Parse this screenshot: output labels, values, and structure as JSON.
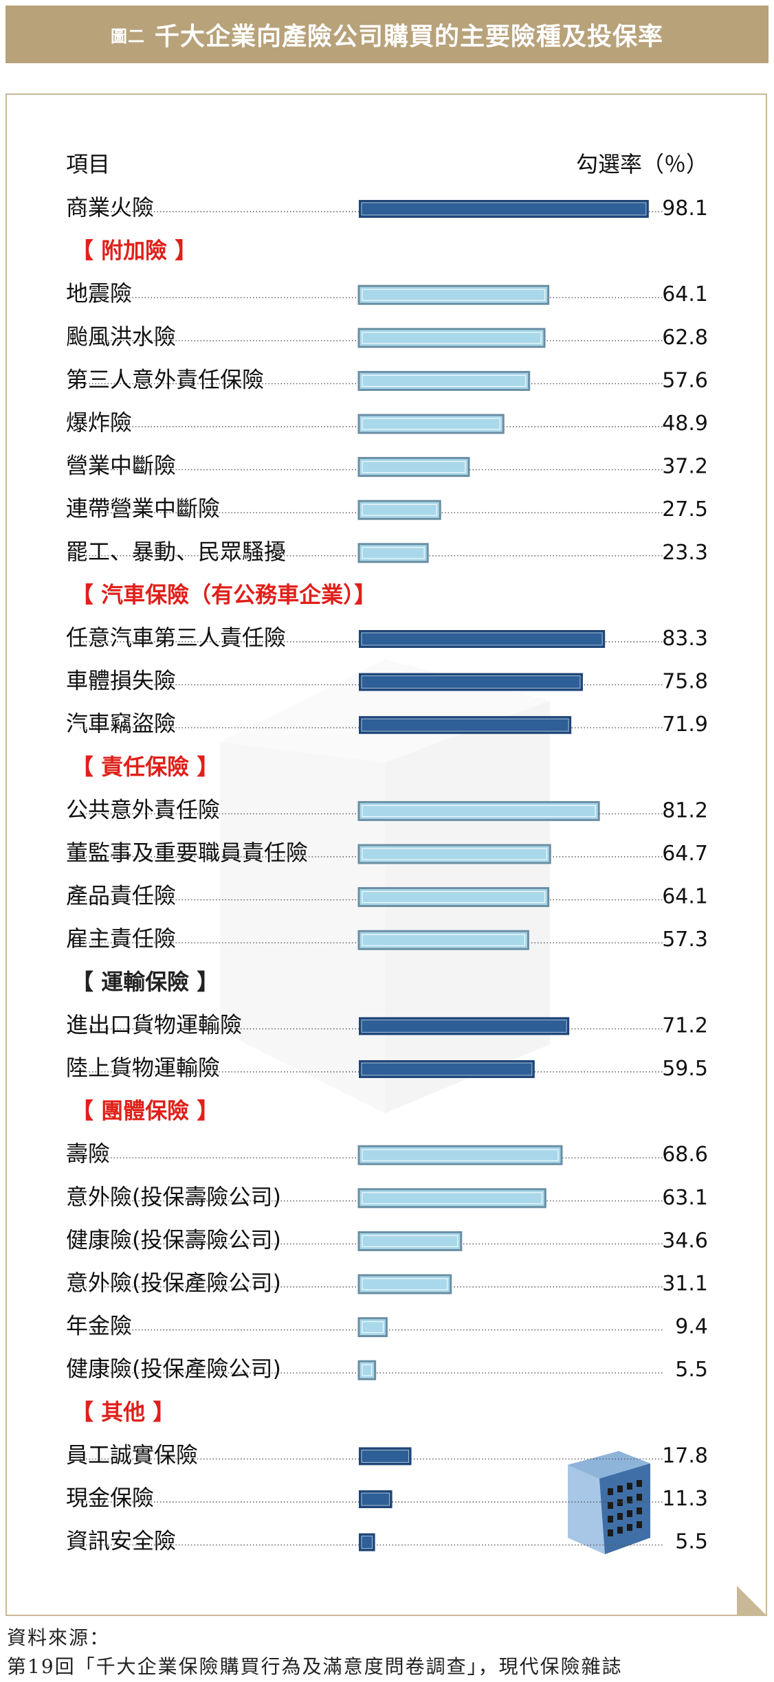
{
  "header": {
    "fig_label": "圖二",
    "title": "千大企業向產險公司購買的主要險種及投保率"
  },
  "chart_data": {
    "type": "bar",
    "orientation": "horizontal",
    "column_item_label": "項目",
    "column_rate_label": "勾選率（％）",
    "rows": [
      {
        "kind": "item",
        "label": "商業火險",
        "value": 98.1,
        "style": "dark"
      },
      {
        "kind": "group",
        "label": "【 附加險 】",
        "color": "#e0201a"
      },
      {
        "kind": "item",
        "label": "地震險",
        "value": 64.1,
        "style": "light"
      },
      {
        "kind": "item",
        "label": "颱風洪水險",
        "value": 62.8,
        "style": "light"
      },
      {
        "kind": "item",
        "label": "第三人意外責任保險",
        "value": 57.6,
        "style": "light"
      },
      {
        "kind": "item",
        "label": "爆炸險",
        "value": 48.9,
        "style": "light"
      },
      {
        "kind": "item",
        "label": "營業中斷險",
        "value": 37.2,
        "style": "light"
      },
      {
        "kind": "item",
        "label": "連帶營業中斷險",
        "value": 27.5,
        "style": "light"
      },
      {
        "kind": "item",
        "label": "罷工、暴動、民眾騷擾",
        "value": 23.3,
        "style": "light"
      },
      {
        "kind": "group",
        "label": "【 汽車保險（有公務車企業）】",
        "color": "#e0201a"
      },
      {
        "kind": "item",
        "label": "任意汽車第三人責任險",
        "value": 83.3,
        "style": "dark"
      },
      {
        "kind": "item",
        "label": "車體損失險",
        "value": 75.8,
        "style": "dark"
      },
      {
        "kind": "item",
        "label": "汽車竊盜險",
        "value": 71.9,
        "style": "dark"
      },
      {
        "kind": "group",
        "label": "【 責任保險 】",
        "color": "#e0201a"
      },
      {
        "kind": "item",
        "label": "公共意外責任險",
        "value": 81.2,
        "style": "light"
      },
      {
        "kind": "item",
        "label": "董監事及重要職員責任險",
        "value": 64.7,
        "style": "light"
      },
      {
        "kind": "item",
        "label": "產品責任險",
        "value": 64.1,
        "style": "light"
      },
      {
        "kind": "item",
        "label": "雇主責任險",
        "value": 57.3,
        "style": "light"
      },
      {
        "kind": "group",
        "label": "【 運輸保險 】",
        "color": "#222222"
      },
      {
        "kind": "item",
        "label": "進出口貨物運輸險",
        "value": 71.2,
        "style": "dark"
      },
      {
        "kind": "item",
        "label": "陸上貨物運輸險",
        "value": 59.5,
        "style": "dark"
      },
      {
        "kind": "group",
        "label": "【 團體保險 】",
        "color": "#e0201a"
      },
      {
        "kind": "item",
        "label": "壽險",
        "value": 68.6,
        "style": "light"
      },
      {
        "kind": "item",
        "label": "意外險(投保壽險公司)",
        "value": 63.1,
        "style": "light"
      },
      {
        "kind": "item",
        "label": "健康險(投保壽險公司)",
        "value": 34.6,
        "style": "light"
      },
      {
        "kind": "item",
        "label": "意外險(投保產險公司)",
        "value": 31.1,
        "style": "light"
      },
      {
        "kind": "item",
        "label": "年金險",
        "value": 9.4,
        "style": "light"
      },
      {
        "kind": "item",
        "label": "健康險(投保產險公司)",
        "value": 5.5,
        "style": "light"
      },
      {
        "kind": "group",
        "label": "【 其他 】",
        "color": "#e0201a"
      },
      {
        "kind": "item",
        "label": "員工誠實保險",
        "value": 17.8,
        "style": "dark"
      },
      {
        "kind": "item",
        "label": "現金保險",
        "value": 11.3,
        "style": "dark"
      },
      {
        "kind": "item",
        "label": "資訊安全險",
        "value": 5.5,
        "style": "dark"
      }
    ],
    "xlim": [
      0,
      100
    ],
    "colors": {
      "dark_fill": "#1f4678",
      "dark_inner": "#2e5f96",
      "light_fill": "#a9d8ea",
      "light_border": "#6a8ea3",
      "group_red": "#e0201a"
    }
  },
  "source": {
    "line1": "資料來源：",
    "line2": "第19回「千大企業保險購買行為及滿意度問卷調查」，現代保險雜誌"
  }
}
